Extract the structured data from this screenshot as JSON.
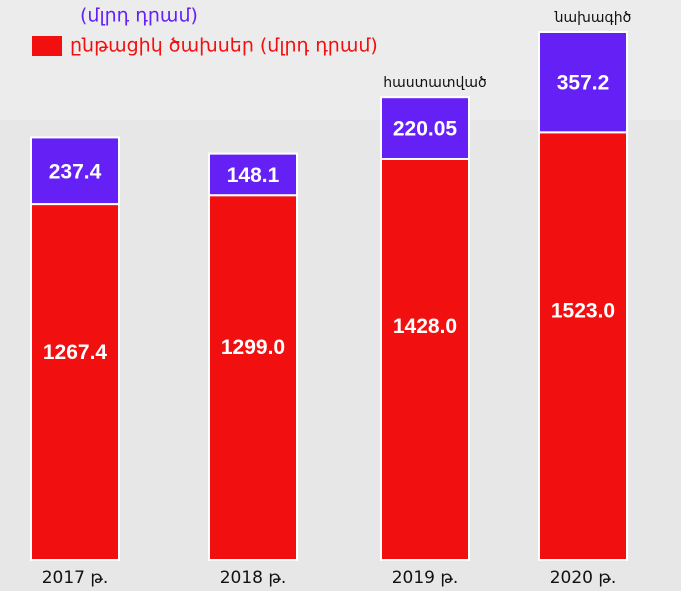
{
  "chart_data": {
    "type": "stacked_bar",
    "categories": [
      "2017 թ.",
      "2018 թ.",
      "2019 թ.",
      "2020 թ."
    ],
    "series": [
      {
        "name": "ընթացիկ ծախսեր (մլրդ դրամ)",
        "color": "#f20f0f",
        "values": [
          1267.4,
          1299.0,
          1428.0,
          1523.0
        ],
        "value_labels": [
          "1267.4",
          "1299.0",
          "1428.0",
          "1523.0"
        ]
      },
      {
        "name": "(մլրդ դրամ)",
        "color": "#6420f5",
        "values": [
          237.4,
          148.1,
          220.05,
          357.2
        ]
      }
    ],
    "annotations": [
      "հաստատված",
      "նախագիծ"
    ]
  }
}
